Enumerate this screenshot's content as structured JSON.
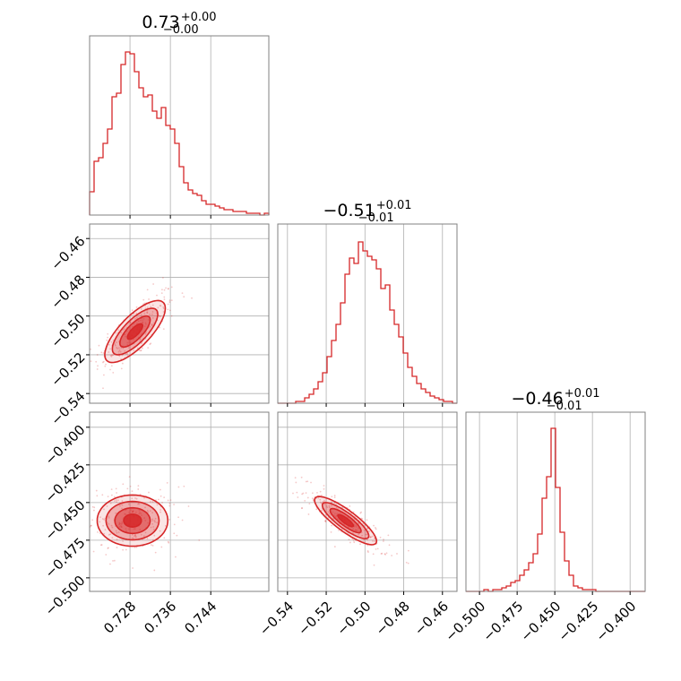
{
  "chart_data": {
    "type": "corner",
    "color": "#d62728",
    "grid": true,
    "parameters": [
      {
        "title": {
          "value": "0.73",
          "upper": "+0.00",
          "lower": "−0.00"
        },
        "range": [
          0.72,
          0.7555
        ],
        "ticks": [
          0.728,
          0.736,
          0.744
        ],
        "tick_labels": [
          "0.728",
          "0.736",
          "0.744"
        ],
        "hist": [
          0.13,
          0.3,
          0.32,
          0.4,
          0.48,
          0.66,
          0.68,
          0.84,
          0.91,
          0.9,
          0.8,
          0.71,
          0.66,
          0.67,
          0.58,
          0.54,
          0.6,
          0.5,
          0.48,
          0.4,
          0.27,
          0.18,
          0.14,
          0.12,
          0.11,
          0.08,
          0.06,
          0.06,
          0.05,
          0.04,
          0.03,
          0.03,
          0.02,
          0.02,
          0.02,
          0.01,
          0.01,
          0.01,
          0.0,
          0.01
        ]
      },
      {
        "title": {
          "value": "−0.51",
          "upper": "+0.01",
          "lower": "−0.01"
        },
        "range": [
          -0.545,
          -0.4525
        ],
        "ticks": [
          -0.54,
          -0.52,
          -0.5,
          -0.48,
          -0.46
        ],
        "tick_labels": [
          "−0.54",
          "−0.52",
          "−0.50",
          "−0.48",
          "−0.46"
        ],
        "hist": [
          0.0,
          0.0,
          0.0,
          0.0,
          0.01,
          0.01,
          0.03,
          0.05,
          0.08,
          0.12,
          0.17,
          0.26,
          0.35,
          0.44,
          0.56,
          0.72,
          0.81,
          0.78,
          0.9,
          0.85,
          0.82,
          0.8,
          0.75,
          0.64,
          0.66,
          0.52,
          0.44,
          0.37,
          0.28,
          0.2,
          0.15,
          0.11,
          0.08,
          0.06,
          0.04,
          0.03,
          0.02,
          0.01,
          0.01,
          0.0
        ]
      },
      {
        "title": {
          "value": "−0.46",
          "upper": "+0.01",
          "lower": "−0.01"
        },
        "range": [
          -0.509,
          -0.39
        ],
        "ticks": [
          -0.5,
          -0.475,
          -0.45,
          -0.425,
          -0.4
        ],
        "tick_labels": [
          "−0.500",
          "−0.475",
          "−0.450",
          "−0.425",
          "−0.400"
        ],
        "hist": [
          0.0,
          0.0,
          0.0,
          0.0,
          0.01,
          0.0,
          0.01,
          0.01,
          0.02,
          0.03,
          0.05,
          0.06,
          0.09,
          0.12,
          0.16,
          0.21,
          0.32,
          0.52,
          0.64,
          0.91,
          0.58,
          0.33,
          0.17,
          0.09,
          0.03,
          0.02,
          0.01,
          0.01,
          0.01,
          0.0,
          0.0,
          0.0,
          0.0,
          0.0,
          0.0,
          0.0,
          0.0,
          0.0,
          0.0,
          0.0
        ]
      }
    ],
    "pairs": [
      {
        "x": 0,
        "y": 1,
        "mean": [
          0.729,
          -0.508
        ],
        "sd": [
          0.003,
          0.008
        ],
        "corr": 0.75
      },
      {
        "x": 0,
        "y": 2,
        "mean": [
          0.7285,
          -0.462
        ],
        "sd": [
          0.0035,
          0.0085
        ],
        "corr": 0.0
      },
      {
        "x": 1,
        "y": 2,
        "mean": [
          -0.51,
          -0.462
        ],
        "sd": [
          0.008,
          0.008
        ],
        "corr": -0.85
      }
    ]
  }
}
